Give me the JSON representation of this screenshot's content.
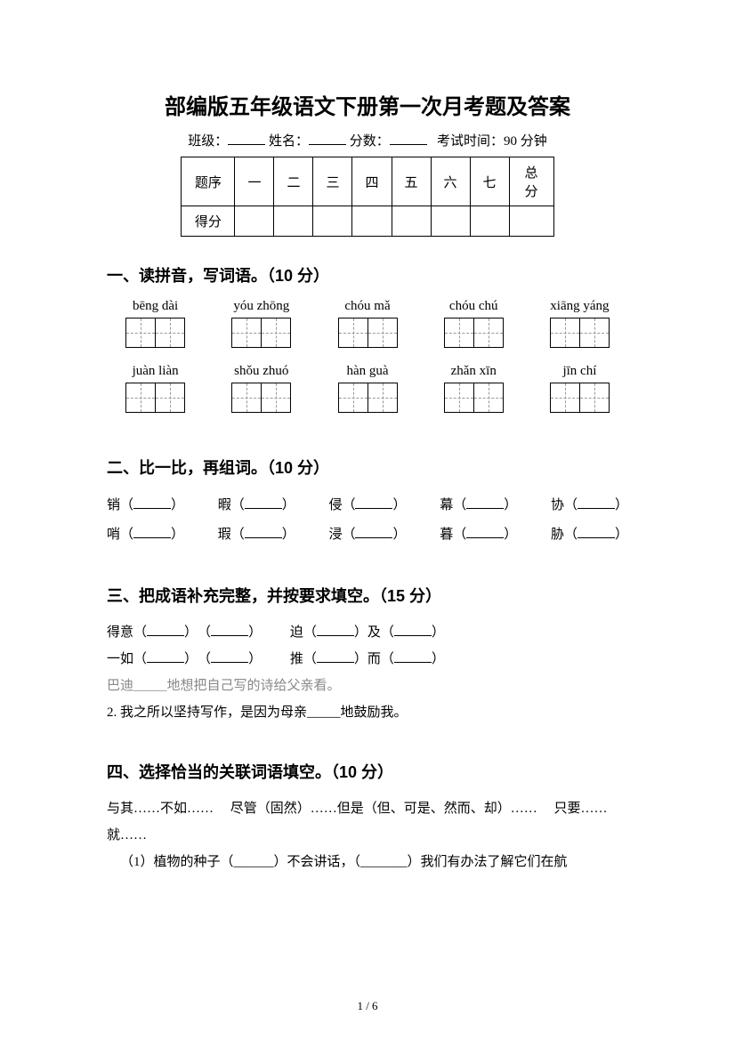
{
  "title": "部编版五年级语文下册第一次月考题及答案",
  "meta": {
    "class_label": "班级：",
    "name_label": "姓名：",
    "score_label": "分数：",
    "exam_time": "考试时间：90 分钟"
  },
  "score_table": {
    "row1_label": "题序",
    "row2_label": "得分",
    "cols": [
      "一",
      "二",
      "三",
      "四",
      "五",
      "六",
      "七"
    ],
    "total": "总分"
  },
  "section1": {
    "heading": "一、读拼音，写词语。（10 分）",
    "row1": [
      {
        "pinyin": "bēng dài",
        "cells": 2
      },
      {
        "pinyin": "yóu zhōng",
        "cells": 2
      },
      {
        "pinyin": "chóu mǎ",
        "cells": 2
      },
      {
        "pinyin": "chóu chú",
        "cells": 2
      },
      {
        "pinyin": "xiāng yáng",
        "cells": 2
      }
    ],
    "row2": [
      {
        "pinyin": "juàn liàn",
        "cells": 2
      },
      {
        "pinyin": "shǒu zhuó",
        "cells": 2
      },
      {
        "pinyin": "hàn guà",
        "cells": 2
      },
      {
        "pinyin": "zhǎn xīn",
        "cells": 2
      },
      {
        "pinyin": "jīn chí",
        "cells": 2
      }
    ]
  },
  "section2": {
    "heading": "二、比一比，再组词。（10 分）",
    "line1": [
      "销",
      "暇",
      "侵",
      "幕",
      "协"
    ],
    "line2": [
      "哨",
      "瑕",
      "浸",
      "暮",
      "胁"
    ]
  },
  "section3": {
    "heading": "三、把成语补充完整，并按要求填空。（15 分）",
    "line1_a": "得意",
    "line1_b_pre": "迫",
    "line1_b_mid": "及",
    "line2_a": "一如",
    "line2_b_pre": "推",
    "line2_b_mid": "而",
    "gray_line": "巴迪_____地想把自己写的诗给父亲看。",
    "line3": "2. 我之所以坚持写作，是因为母亲_____地鼓励我。"
  },
  "section4": {
    "heading": "四、选择恰当的关联词语填空。（10 分）",
    "options": "与其……不如……　 尽管（固然）……但是（但、可是、然而、却）……　  只要……就……",
    "q1": "（1）植物的种子（______）不会讲话，（_______）我们有办法了解它们在航"
  },
  "page_number": "1  /  6",
  "colors": {
    "text": "#000000",
    "gray_text": "#888888",
    "background": "#ffffff",
    "dash": "#999999"
  }
}
